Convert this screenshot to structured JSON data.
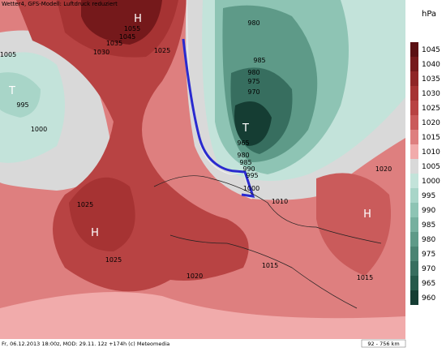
{
  "header": {
    "title": "Wetter4, GFS-Modell: Luftdruck reduziert"
  },
  "legend": {
    "unit": "hPa",
    "levels": [
      {
        "value": 1045,
        "color": "#5a0f12"
      },
      {
        "value": 1040,
        "color": "#75191b"
      },
      {
        "value": 1035,
        "color": "#8f2526"
      },
      {
        "value": 1030,
        "color": "#a63333"
      },
      {
        "value": 1025,
        "color": "#b84343"
      },
      {
        "value": 1020,
        "color": "#ca5b5b"
      },
      {
        "value": 1015,
        "color": "#de7f7f"
      },
      {
        "value": 1010,
        "color": "#f1abab"
      },
      {
        "value": 1005,
        "color": "#d9d9d9"
      },
      {
        "value": 1000,
        "color": "#c3e3da"
      },
      {
        "value": 995,
        "color": "#a8d5c8"
      },
      {
        "value": 990,
        "color": "#8ec4b4"
      },
      {
        "value": 985,
        "color": "#76b09f"
      },
      {
        "value": 980,
        "color": "#5e9a88"
      },
      {
        "value": 975,
        "color": "#4a8473"
      },
      {
        "value": 970,
        "color": "#376e5f"
      },
      {
        "value": 965,
        "color": "#255a4b"
      },
      {
        "value": 960,
        "color": "#153d33"
      }
    ]
  },
  "map": {
    "labels": [
      "1005",
      "995",
      "1000",
      "T",
      "H",
      "1055",
      "1045",
      "1035",
      "1030",
      "1025",
      "980",
      "985",
      "980",
      "975",
      "970",
      "T",
      "965",
      "980",
      "985",
      "990",
      "995",
      "1000",
      "1010",
      "1025",
      "H",
      "1025",
      "1015",
      "1020",
      "1015",
      "H",
      "1020"
    ]
  },
  "footer": {
    "text": "Fr, 06.12.2013 18:00z, MOD: 29.11. 12z +174h (c) Meteomedia",
    "scale": "92 - 756 km"
  }
}
